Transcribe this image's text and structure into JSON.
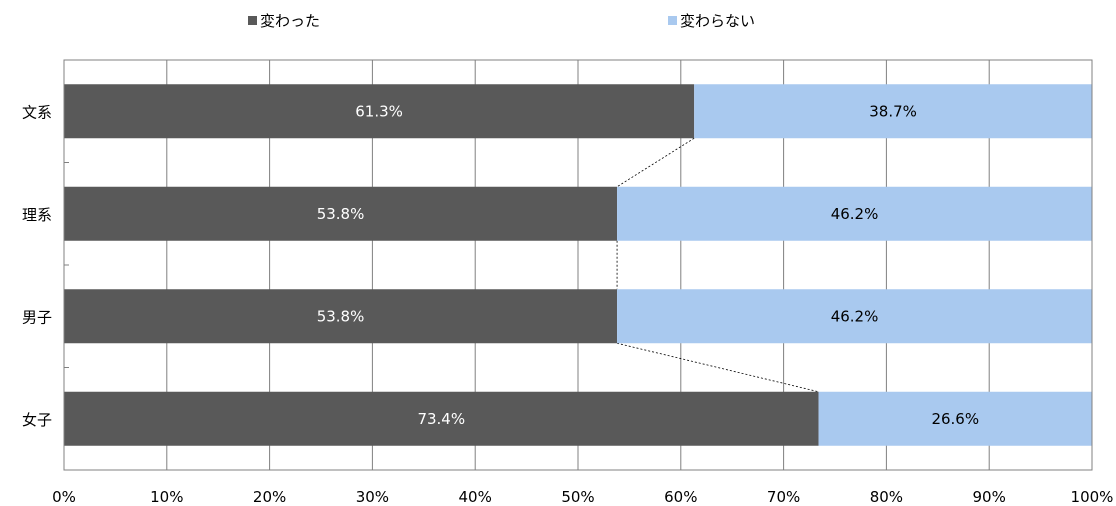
{
  "chart_data": {
    "type": "bar",
    "orientation": "horizontal",
    "stacked": true,
    "categories": [
      "文系",
      "理系",
      "男子",
      "女子"
    ],
    "series": [
      {
        "name": "変わった",
        "values": [
          61.3,
          53.8,
          53.8,
          73.4
        ],
        "labels": [
          "61.3%",
          "53.8%",
          "53.8%",
          "73.4%"
        ],
        "color": "#595959",
        "label_color": "#ffffff"
      },
      {
        "name": "変わらない",
        "values": [
          38.7,
          46.2,
          46.2,
          26.6
        ],
        "labels": [
          "38.7%",
          "46.2%",
          "46.2%",
          "26.6%"
        ],
        "color": "#a9c9ef",
        "label_color": "#000000"
      }
    ],
    "xlim": [
      0,
      100
    ],
    "x_ticks": [
      0,
      10,
      20,
      30,
      40,
      50,
      60,
      70,
      80,
      90,
      100
    ],
    "x_tick_labels": [
      "0%",
      "10%",
      "20%",
      "30%",
      "40%",
      "50%",
      "60%",
      "70%",
      "80%",
      "90%",
      "100%"
    ],
    "grid": "vertical",
    "legend_position": "top",
    "series_lines": true
  }
}
